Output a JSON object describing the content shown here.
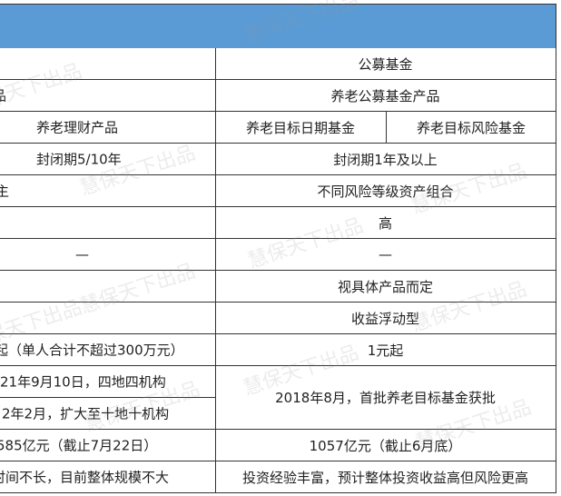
{
  "header_color": "#5b9bd5",
  "watermark": "慧保天下出品",
  "left_column": {
    "r2": "品",
    "r3": "养老理财产品",
    "r4": "封闭期5/10年",
    "r5": "主",
    "r7": "—",
    "r10": "起（单人合计不超过300万元）",
    "r11": "21年9月10日，四地四机构",
    "r12": "2年2月，扩大至十地十机构",
    "r13": "585亿元（截止7月22日）",
    "r14": "时间不长，目前整体规模不大"
  },
  "right_column": {
    "r1": "公募基金",
    "r2": "养老公募基金产品",
    "r3a": "养老目标日期基金",
    "r3b": "养老目标风险基金",
    "r4": "封闭期1年及以上",
    "r5": "不同风险等级资产组合",
    "r6": "高",
    "r7": "—",
    "r8": "视具体产品而定",
    "r9": "收益浮动型",
    "r10": "1元起",
    "r11": "2018年8月，首批养老目标基金获批",
    "r13": "1057亿元（截止6月底）",
    "r14": "投资经验丰富，预计整体投资收益高但风险更高"
  }
}
